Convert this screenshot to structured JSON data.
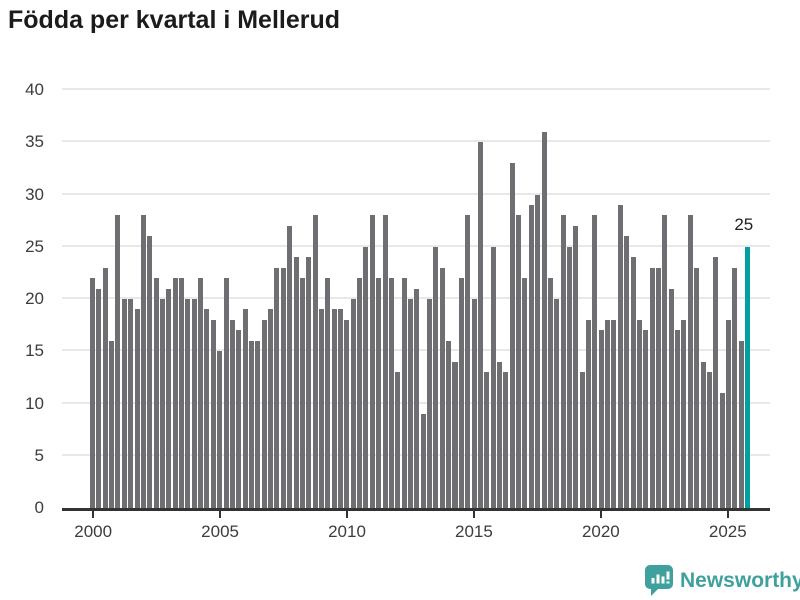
{
  "title": "Födda per kvartal i Mellerud",
  "colors": {
    "bar": "#6e6e73",
    "highlight_bar": "#00a0a0",
    "axis": "#333333",
    "gridline": "#e8e8e8",
    "tick_label": "#3d3d3d",
    "title_text": "#1b1b1b",
    "logo_teal": "#3fa09e"
  },
  "chart_data": {
    "type": "bar",
    "title": "Födda per kvartal i Mellerud",
    "xlabel": "",
    "ylabel": "",
    "ylim": [
      0,
      40
    ],
    "y_ticks": [
      0,
      5,
      10,
      15,
      20,
      25,
      30,
      35,
      40
    ],
    "x_tick_labels": [
      "2000",
      "2005",
      "2010",
      "2015",
      "2020",
      "2025"
    ],
    "x_tick_indices": [
      0,
      20,
      40,
      60,
      80,
      100
    ],
    "grid": true,
    "values": [
      22,
      21,
      23,
      16,
      28,
      20,
      20,
      19,
      28,
      26,
      22,
      20,
      21,
      22,
      22,
      20,
      20,
      22,
      19,
      18,
      15,
      22,
      18,
      17,
      19,
      16,
      16,
      18,
      19,
      23,
      23,
      27,
      24,
      22,
      24,
      28,
      19,
      22,
      19,
      19,
      18,
      20,
      22,
      25,
      28,
      22,
      28,
      22,
      13,
      22,
      20,
      21,
      9,
      20,
      25,
      23,
      16,
      14,
      22,
      28,
      20,
      35,
      13,
      25,
      14,
      13,
      33,
      28,
      22,
      29,
      30,
      36,
      22,
      20,
      28,
      25,
      27,
      13,
      18,
      28,
      17,
      18,
      18,
      29,
      26,
      24,
      18,
      17,
      23,
      23,
      28,
      21,
      17,
      18,
      28,
      23,
      14,
      13,
      24,
      11,
      18,
      23,
      16,
      25
    ],
    "highlight_last": true,
    "annotation": {
      "text": "25",
      "value": 25
    }
  },
  "logo": {
    "text": "Newsworthy"
  }
}
